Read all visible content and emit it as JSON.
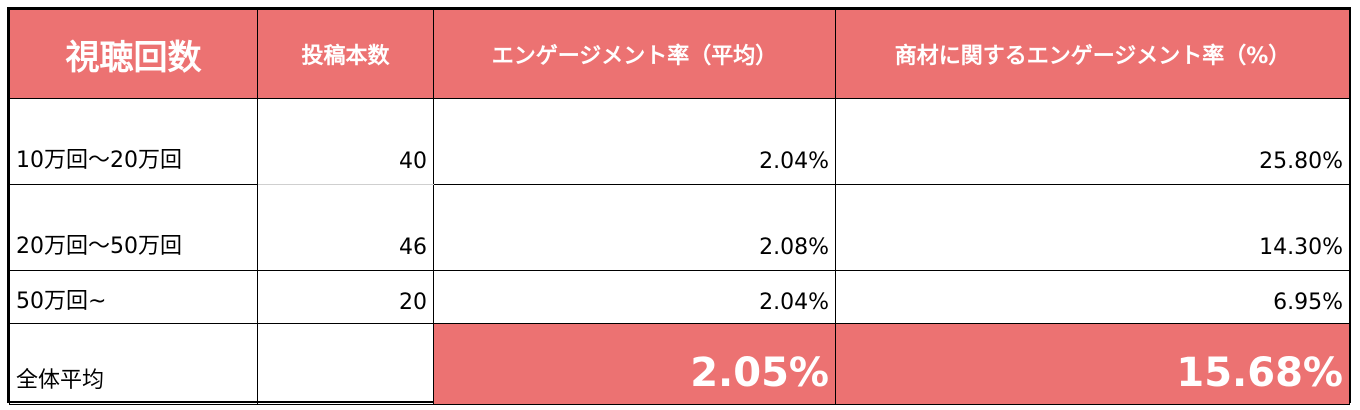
{
  "headers": {
    "views": "視聴回数",
    "posts": "投稿本数",
    "engagement": "エンゲージメント率（平均）",
    "product_engagement": "商材に関するエンゲージメント率（%）"
  },
  "rows": [
    {
      "range": "10万回〜20万回",
      "posts": "40",
      "engagement": "2.04%",
      "product_engagement": "25.80%"
    },
    {
      "range": "20万回〜50万回",
      "posts": "46",
      "engagement": "2.08%",
      "product_engagement": "14.30%"
    },
    {
      "range": "50万回~",
      "posts": "20",
      "engagement": "2.04%",
      "product_engagement": "6.95%"
    }
  ],
  "average": {
    "label": "全体平均",
    "posts": "",
    "engagement": "2.05%",
    "product_engagement": "15.68%"
  },
  "colors": {
    "header_bg": "#ec7272",
    "header_text": "#ffffff",
    "highlight_bg": "#ec7272"
  }
}
